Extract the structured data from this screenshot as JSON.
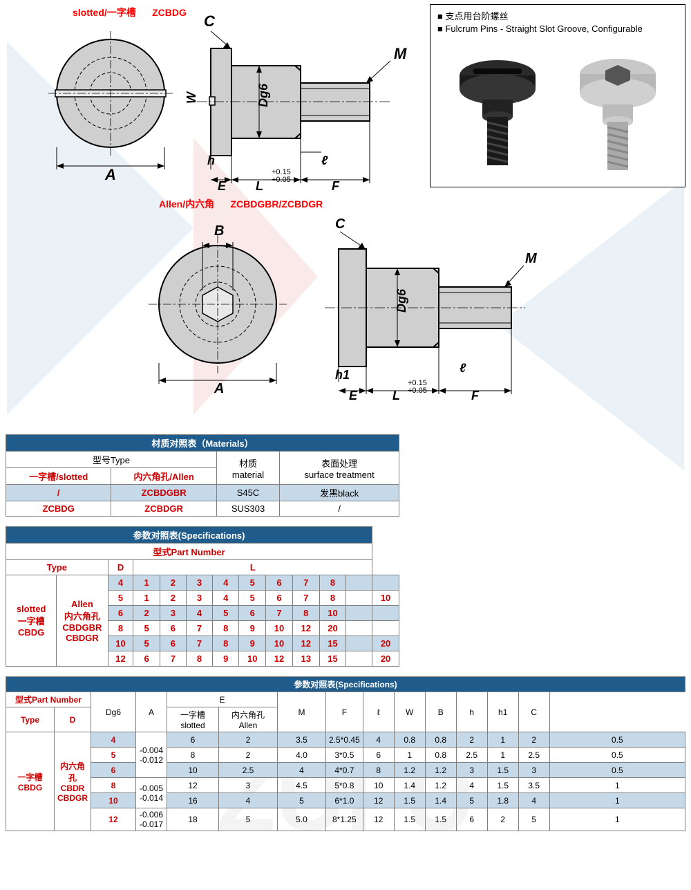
{
  "labels": {
    "slotted_cn": "slotted/一字槽",
    "slotted_code": "ZCBDG",
    "allen_cn": "Allen/内六角",
    "allen_code": "ZCBDGBR/ZCBDGR"
  },
  "drawing_labels": {
    "A": "A",
    "B": "B",
    "C": "C",
    "W": "W",
    "h": "h",
    "h1": "h1",
    "E": "E",
    "L": "L",
    "F": "F",
    "M": "M",
    "Dg6": "Dg6",
    "l": "ℓ",
    "tol": "+0.15\n+0.05"
  },
  "photo_box": {
    "line1": "■ 支点用台阶螺丝",
    "line2": "■ Fulcrum Pins - Straight Slot Groove, Configurable"
  },
  "materials": {
    "title": "材质对照表（Materials）",
    "type_label": "型号Type",
    "material_label": "材质\nmaterial",
    "surface_label": "表面处理\nsurface treatment",
    "slotted_hdr": "一字槽/slotted",
    "allen_hdr": "内六角孔/Allen",
    "rows": [
      {
        "c1": "/",
        "c2": "ZCBDGBR",
        "c3": "S45C",
        "c4": "发黑black"
      },
      {
        "c1": "ZCBDG",
        "c2": "ZCBDGR",
        "c3": "SUS303",
        "c4": "/"
      }
    ]
  },
  "spec1": {
    "title": "参数对照表(Specifications)",
    "part_label": "型式Part Number",
    "type": "Type",
    "D": "D",
    "L": "L",
    "left1": "slotted\n一字槽\nCBDG",
    "left2": "Allen\n内六角孔\nCBDGBR\nCBDGR",
    "rows": [
      {
        "d": "4",
        "l": [
          "1",
          "2",
          "3",
          "4",
          "5",
          "6",
          "7",
          "8",
          "",
          ""
        ]
      },
      {
        "d": "5",
        "l": [
          "1",
          "2",
          "3",
          "4",
          "5",
          "6",
          "7",
          "8",
          "",
          "10"
        ]
      },
      {
        "d": "6",
        "l": [
          "2",
          "3",
          "4",
          "5",
          "6",
          "7",
          "8",
          "10",
          "",
          ""
        ]
      },
      {
        "d": "8",
        "l": [
          "5",
          "6",
          "7",
          "8",
          "9",
          "10",
          "12",
          "20",
          "",
          ""
        ]
      },
      {
        "d": "10",
        "l": [
          "5",
          "6",
          "7",
          "8",
          "9",
          "10",
          "12",
          "15",
          "",
          "20"
        ]
      },
      {
        "d": "12",
        "l": [
          "6",
          "7",
          "8",
          "9",
          "10",
          "12",
          "13",
          "15",
          "",
          "20"
        ]
      }
    ]
  },
  "spec2": {
    "title": "参数对照表(Specifications)",
    "part_label": "型式Part Number",
    "type": "Type",
    "D": "D",
    "Dg6": "Dg6",
    "A": "A",
    "E": "E",
    "E_slot": "一字槽\nslotted",
    "E_allen": "内六角孔\nAllen",
    "M": "M",
    "F": "F",
    "l": "ℓ",
    "W": "W",
    "B": "B",
    "h": "h",
    "h1": "h1",
    "C": "C",
    "left1": "一字槽\nCBDG",
    "left2": "内六角孔\nCBDR\nCBDGR",
    "rows": [
      {
        "d": "4",
        "dg6": "-0.004\n-0.012",
        "a": "6",
        "es": "2",
        "ea": "3.5",
        "m": "2.5*0.45",
        "f": "4",
        "l": "0.8",
        "w": "0.8",
        "b": "2",
        "h": "1",
        "h1": "2",
        "c": "0.5"
      },
      {
        "d": "5",
        "dg6": "",
        "a": "8",
        "es": "2",
        "ea": "4.0",
        "m": "3*0.5",
        "f": "6",
        "l": "1",
        "w": "0.8",
        "b": "2.5",
        "h": "1",
        "h1": "2.5",
        "c": "0.5"
      },
      {
        "d": "6",
        "dg6": "",
        "a": "10",
        "es": "2.5",
        "ea": "4",
        "m": "4*0.7",
        "f": "8",
        "l": "1.2",
        "w": "1.2",
        "b": "3",
        "h": "1.5",
        "h1": "3",
        "c": "0.5"
      },
      {
        "d": "8",
        "dg6": "-0.005\n-0.014",
        "a": "12",
        "es": "3",
        "ea": "4.5",
        "m": "5*0.8",
        "f": "10",
        "l": "1.4",
        "w": "1.2",
        "b": "4",
        "h": "1.5",
        "h1": "3.5",
        "c": "1"
      },
      {
        "d": "10",
        "dg6": "",
        "a": "16",
        "es": "4",
        "ea": "5",
        "m": "6*1.0",
        "f": "12",
        "l": "1.5",
        "w": "1.4",
        "b": "5",
        "h": "1.8",
        "h1": "4",
        "c": "1"
      },
      {
        "d": "12",
        "dg6": "-0.006\n-0.017",
        "a": "18",
        "es": "5",
        "ea": "5.0",
        "m": "8*1.25",
        "f": "12",
        "l": "1.5",
        "w": "1.5",
        "b": "6",
        "h": "2",
        "h1": "5",
        "c": "1"
      }
    ]
  },
  "colors": {
    "header_bg": "#1f5c8b",
    "blue_cell": "#c5d9e8",
    "red": "#ff0000",
    "rb": "#cc0000",
    "border": "#808080"
  }
}
